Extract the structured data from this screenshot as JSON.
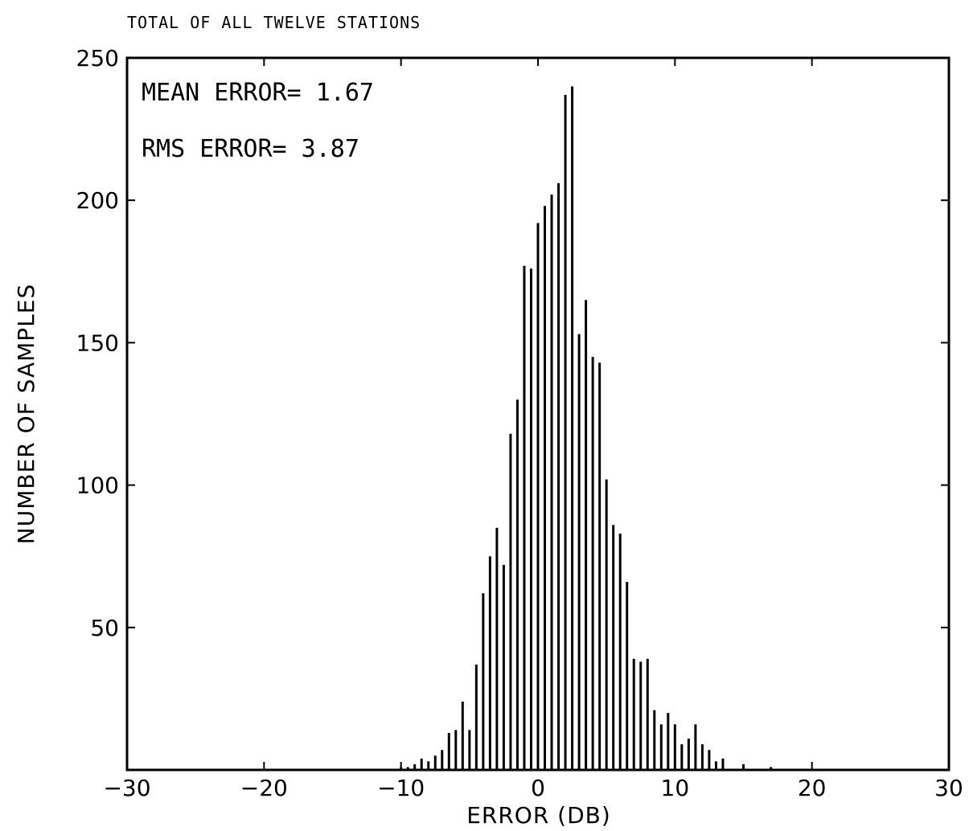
{
  "chart_data": {
    "type": "bar",
    "title": "TOTAL OF ALL TWELVE STATIONS",
    "xlabel": "ERROR (DB)",
    "ylabel": "NUMBER OF SAMPLES",
    "xlim": [
      -30,
      30
    ],
    "ylim": [
      0,
      250
    ],
    "xticks": [
      -30,
      -20,
      -10,
      0,
      10,
      20,
      30
    ],
    "yticks": [
      50,
      100,
      150,
      200,
      250
    ],
    "grid": false,
    "annotations": [
      "MEAN ERROR= 1.67",
      "RMS ERROR= 3.87"
    ],
    "x": [
      -10,
      -9.5,
      -9,
      -8.5,
      -8,
      -7.5,
      -7,
      -6.5,
      -6,
      -5.5,
      -5,
      -4.5,
      -4,
      -3.5,
      -3,
      -2.5,
      -2,
      -1.5,
      -1,
      -0.5,
      0,
      0.5,
      1,
      1.5,
      2,
      2.5,
      3,
      3.5,
      4,
      4.5,
      5,
      5.5,
      6,
      6.5,
      7,
      7.5,
      8,
      8.5,
      9,
      9.5,
      10,
      10.5,
      11,
      11.5,
      12,
      12.5,
      13,
      13.5,
      15,
      17
    ],
    "values": [
      1,
      1,
      2,
      4,
      3,
      5,
      7,
      13,
      14,
      24,
      14,
      37,
      62,
      75,
      85,
      72,
      118,
      130,
      177,
      176,
      192,
      198,
      202,
      206,
      237,
      240,
      153,
      165,
      145,
      143,
      102,
      86,
      83,
      66,
      39,
      38,
      39,
      21,
      16,
      20,
      16,
      9,
      11,
      16,
      9,
      7,
      3,
      4,
      2,
      1
    ]
  }
}
